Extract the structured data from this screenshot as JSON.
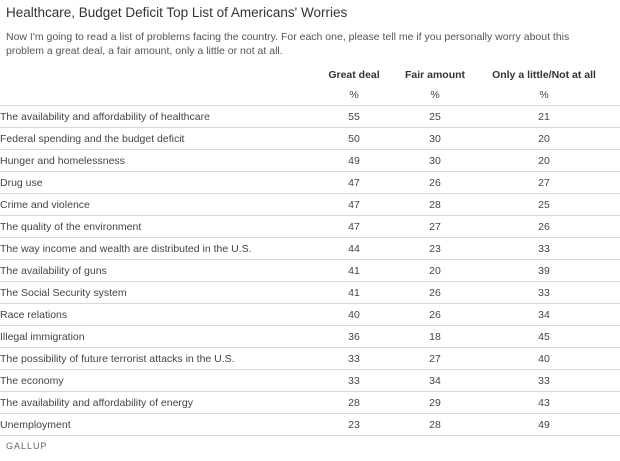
{
  "chart_data": {
    "type": "table",
    "title": "Healthcare, Budget Deficit Top List of Americans' Worries",
    "subtitle": "Now I'm going to read a list of problems facing the country. For each one, please tell me if you personally worry about this problem a great deal, a fair amount, only a little or not at all.",
    "columns": [
      "Great deal",
      "Fair amount",
      "Only a little/Not at all"
    ],
    "units": [
      "%",
      "%",
      "%"
    ],
    "rows": [
      {
        "label": "The availability and affordability of healthcare",
        "values": [
          55,
          25,
          21
        ]
      },
      {
        "label": "Federal spending and the budget deficit",
        "values": [
          50,
          30,
          20
        ]
      },
      {
        "label": "Hunger and homelessness",
        "values": [
          49,
          30,
          20
        ]
      },
      {
        "label": "Drug use",
        "values": [
          47,
          26,
          27
        ]
      },
      {
        "label": "Crime and violence",
        "values": [
          47,
          28,
          25
        ]
      },
      {
        "label": "The quality of the environment",
        "values": [
          47,
          27,
          26
        ]
      },
      {
        "label": "The way income and wealth are distributed in the U.S.",
        "values": [
          44,
          23,
          33
        ]
      },
      {
        "label": "The availability of guns",
        "values": [
          41,
          20,
          39
        ]
      },
      {
        "label": "The Social Security system",
        "values": [
          41,
          26,
          33
        ]
      },
      {
        "label": "Race relations",
        "values": [
          40,
          26,
          34
        ]
      },
      {
        "label": "Illegal immigration",
        "values": [
          36,
          18,
          45
        ]
      },
      {
        "label": "The possibility of future terrorist attacks in the U.S.",
        "values": [
          33,
          27,
          40
        ]
      },
      {
        "label": "The economy",
        "values": [
          33,
          34,
          33
        ]
      },
      {
        "label": "The availability and affordability of energy",
        "values": [
          28,
          29,
          43
        ]
      },
      {
        "label": "Unemployment",
        "values": [
          23,
          28,
          49
        ]
      }
    ],
    "source": "GALLUP"
  }
}
